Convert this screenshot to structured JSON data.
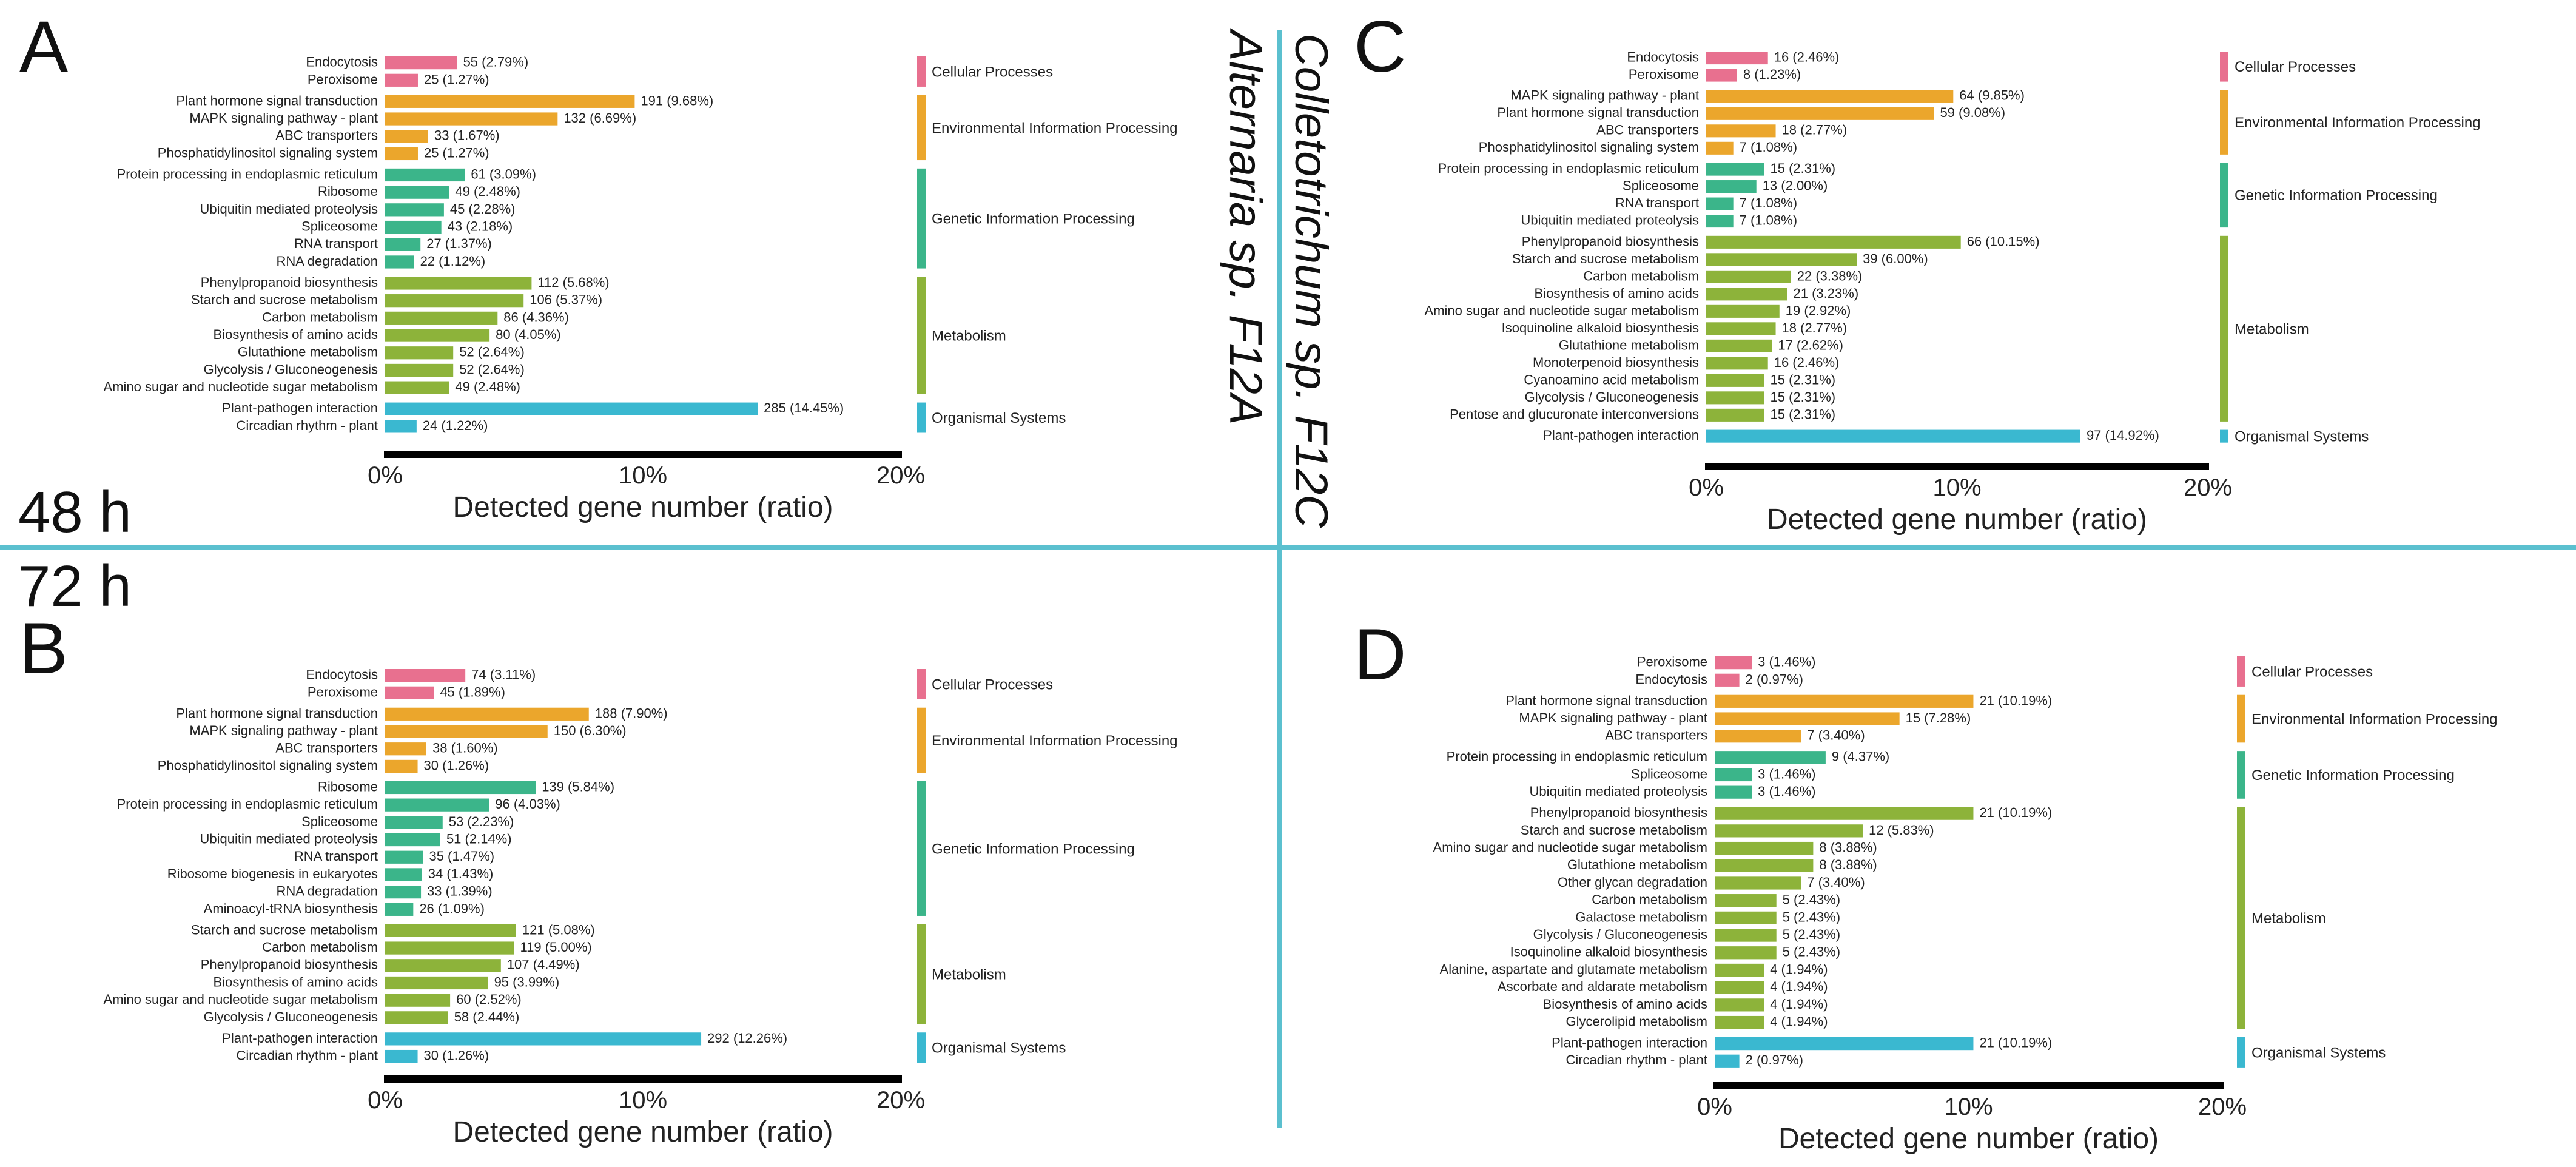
{
  "time_labels": {
    "top": "48 h",
    "bottom": "72 h"
  },
  "organisms": {
    "alternaria": "Alternaria sp. F12A",
    "colletotrichum": "Colletotrichum sp. F12C"
  },
  "colors": {
    "Cellular Processes": "#e8708f",
    "Environmental Information Processing": "#eba62c",
    "Genetic Information Processing": "#3bb58a",
    "Metabolism": "#8db33a",
    "Organismal Systems": "#3ab8d0",
    "divider": "#5bc0cf"
  },
  "chart_data": [
    {
      "panel": "A",
      "type": "bar",
      "orientation": "horizontal",
      "xlabel": "Detected gene number (ratio)",
      "xlim": [
        0,
        20
      ],
      "xticks": [
        "0%",
        "10%",
        "20%"
      ],
      "groups": [
        {
          "name": "Cellular Processes",
          "items": [
            {
              "label": "Endocytosis",
              "value": 2.79,
              "text": "55 (2.79%)"
            },
            {
              "label": "Peroxisome",
              "value": 1.27,
              "text": "25 (1.27%)"
            }
          ]
        },
        {
          "name": "Environmental Information Processing",
          "items": [
            {
              "label": "Plant hormone signal transduction",
              "value": 9.68,
              "text": "191 (9.68%)"
            },
            {
              "label": "MAPK signaling pathway - plant",
              "value": 6.69,
              "text": "132 (6.69%)"
            },
            {
              "label": "ABC transporters",
              "value": 1.67,
              "text": "33 (1.67%)"
            },
            {
              "label": "Phosphatidylinositol signaling system",
              "value": 1.27,
              "text": "25 (1.27%)"
            }
          ]
        },
        {
          "name": "Genetic Information Processing",
          "items": [
            {
              "label": "Protein processing in endoplasmic reticulum",
              "value": 3.09,
              "text": "61 (3.09%)"
            },
            {
              "label": "Ribosome",
              "value": 2.48,
              "text": "49 (2.48%)"
            },
            {
              "label": "Ubiquitin mediated proteolysis",
              "value": 2.28,
              "text": "45 (2.28%)"
            },
            {
              "label": "Spliceosome",
              "value": 2.18,
              "text": "43 (2.18%)"
            },
            {
              "label": "RNA transport",
              "value": 1.37,
              "text": "27 (1.37%)"
            },
            {
              "label": "RNA degradation",
              "value": 1.12,
              "text": "22 (1.12%)"
            }
          ]
        },
        {
          "name": "Metabolism",
          "items": [
            {
              "label": "Phenylpropanoid biosynthesis",
              "value": 5.68,
              "text": "112 (5.68%)"
            },
            {
              "label": "Starch and sucrose metabolism",
              "value": 5.37,
              "text": "106 (5.37%)"
            },
            {
              "label": "Carbon metabolism",
              "value": 4.36,
              "text": "86 (4.36%)"
            },
            {
              "label": "Biosynthesis of amino acids",
              "value": 4.05,
              "text": "80 (4.05%)"
            },
            {
              "label": "Glutathione metabolism",
              "value": 2.64,
              "text": "52 (2.64%)"
            },
            {
              "label": "Glycolysis / Gluconeogenesis",
              "value": 2.64,
              "text": "52 (2.64%)"
            },
            {
              "label": "Amino sugar and nucleotide sugar metabolism",
              "value": 2.48,
              "text": "49 (2.48%)"
            }
          ]
        },
        {
          "name": "Organismal Systems",
          "items": [
            {
              "label": "Plant-pathogen interaction",
              "value": 14.45,
              "text": "285 (14.45%)"
            },
            {
              "label": "Circadian rhythm - plant",
              "value": 1.22,
              "text": "24 (1.22%)"
            }
          ]
        }
      ]
    },
    {
      "panel": "B",
      "type": "bar",
      "orientation": "horizontal",
      "xlabel": "Detected gene number (ratio)",
      "xlim": [
        0,
        20
      ],
      "xticks": [
        "0%",
        "10%",
        "20%"
      ],
      "groups": [
        {
          "name": "Cellular Processes",
          "items": [
            {
              "label": "Endocytosis",
              "value": 3.11,
              "text": "74 (3.11%)"
            },
            {
              "label": "Peroxisome",
              "value": 1.89,
              "text": "45 (1.89%)"
            }
          ]
        },
        {
          "name": "Environmental Information Processing",
          "items": [
            {
              "label": "Plant hormone signal transduction",
              "value": 7.9,
              "text": "188 (7.90%)"
            },
            {
              "label": "MAPK signaling pathway - plant",
              "value": 6.3,
              "text": "150 (6.30%)"
            },
            {
              "label": "ABC transporters",
              "value": 1.6,
              "text": "38 (1.60%)"
            },
            {
              "label": "Phosphatidylinositol signaling system",
              "value": 1.26,
              "text": "30 (1.26%)"
            }
          ]
        },
        {
          "name": "Genetic Information Processing",
          "items": [
            {
              "label": "Ribosome",
              "value": 5.84,
              "text": "139 (5.84%)"
            },
            {
              "label": "Protein processing in endoplasmic reticulum",
              "value": 4.03,
              "text": "96 (4.03%)"
            },
            {
              "label": "Spliceosome",
              "value": 2.23,
              "text": "53 (2.23%)"
            },
            {
              "label": "Ubiquitin mediated proteolysis",
              "value": 2.14,
              "text": "51 (2.14%)"
            },
            {
              "label": "RNA transport",
              "value": 1.47,
              "text": "35 (1.47%)"
            },
            {
              "label": "Ribosome biogenesis in eukaryotes",
              "value": 1.43,
              "text": "34 (1.43%)"
            },
            {
              "label": "RNA degradation",
              "value": 1.39,
              "text": "33 (1.39%)"
            },
            {
              "label": "Aminoacyl-tRNA biosynthesis",
              "value": 1.09,
              "text": "26 (1.09%)"
            }
          ]
        },
        {
          "name": "Metabolism",
          "items": [
            {
              "label": "Starch and sucrose metabolism",
              "value": 5.08,
              "text": "121 (5.08%)"
            },
            {
              "label": "Carbon metabolism",
              "value": 5.0,
              "text": "119 (5.00%)"
            },
            {
              "label": "Phenylpropanoid biosynthesis",
              "value": 4.49,
              "text": "107 (4.49%)"
            },
            {
              "label": "Biosynthesis of amino acids",
              "value": 3.99,
              "text": "95 (3.99%)"
            },
            {
              "label": "Amino sugar and nucleotide sugar metabolism",
              "value": 2.52,
              "text": "60 (2.52%)"
            },
            {
              "label": "Glycolysis / Gluconeogenesis",
              "value": 2.44,
              "text": "58 (2.44%)"
            }
          ]
        },
        {
          "name": "Organismal Systems",
          "items": [
            {
              "label": "Plant-pathogen interaction",
              "value": 12.26,
              "text": "292 (12.26%)"
            },
            {
              "label": "Circadian rhythm - plant",
              "value": 1.26,
              "text": "30 (1.26%)"
            }
          ]
        }
      ]
    },
    {
      "panel": "C",
      "type": "bar",
      "orientation": "horizontal",
      "xlabel": "Detected gene number (ratio)",
      "xlim": [
        0,
        20
      ],
      "xticks": [
        "0%",
        "10%",
        "20%"
      ],
      "groups": [
        {
          "name": "Cellular Processes",
          "items": [
            {
              "label": "Endocytosis",
              "value": 2.46,
              "text": "16 (2.46%)"
            },
            {
              "label": "Peroxisome",
              "value": 1.23,
              "text": "8 (1.23%)"
            }
          ]
        },
        {
          "name": "Environmental Information Processing",
          "items": [
            {
              "label": "MAPK signaling pathway - plant",
              "value": 9.85,
              "text": "64 (9.85%)"
            },
            {
              "label": "Plant hormone signal transduction",
              "value": 9.08,
              "text": "59 (9.08%)"
            },
            {
              "label": "ABC transporters",
              "value": 2.77,
              "text": "18 (2.77%)"
            },
            {
              "label": "Phosphatidylinositol signaling system",
              "value": 1.08,
              "text": "7 (1.08%)"
            }
          ]
        },
        {
          "name": "Genetic Information Processing",
          "items": [
            {
              "label": "Protein processing in endoplasmic reticulum",
              "value": 2.31,
              "text": "15 (2.31%)"
            },
            {
              "label": "Spliceosome",
              "value": 2.0,
              "text": "13 (2.00%)"
            },
            {
              "label": "RNA transport",
              "value": 1.08,
              "text": "7 (1.08%)"
            },
            {
              "label": "Ubiquitin mediated proteolysis",
              "value": 1.08,
              "text": "7 (1.08%)"
            }
          ]
        },
        {
          "name": "Metabolism",
          "items": [
            {
              "label": "Phenylpropanoid biosynthesis",
              "value": 10.15,
              "text": "66 (10.15%)"
            },
            {
              "label": "Starch and sucrose metabolism",
              "value": 6.0,
              "text": "39 (6.00%)"
            },
            {
              "label": "Carbon metabolism",
              "value": 3.38,
              "text": "22 (3.38%)"
            },
            {
              "label": "Biosynthesis of amino acids",
              "value": 3.23,
              "text": "21 (3.23%)"
            },
            {
              "label": "Amino sugar and nucleotide sugar metabolism",
              "value": 2.92,
              "text": "19 (2.92%)"
            },
            {
              "label": "Isoquinoline alkaloid biosynthesis",
              "value": 2.77,
              "text": "18 (2.77%)"
            },
            {
              "label": "Glutathione metabolism",
              "value": 2.62,
              "text": "17 (2.62%)"
            },
            {
              "label": "Monoterpenoid biosynthesis",
              "value": 2.46,
              "text": "16 (2.46%)"
            },
            {
              "label": "Cyanoamino acid metabolism",
              "value": 2.31,
              "text": "15 (2.31%)"
            },
            {
              "label": "Glycolysis / Gluconeogenesis",
              "value": 2.31,
              "text": "15 (2.31%)"
            },
            {
              "label": "Pentose and glucuronate interconversions",
              "value": 2.31,
              "text": "15 (2.31%)"
            }
          ]
        },
        {
          "name": "Organismal Systems",
          "items": [
            {
              "label": "Plant-pathogen interaction",
              "value": 14.92,
              "text": "97 (14.92%)"
            }
          ]
        }
      ]
    },
    {
      "panel": "D",
      "type": "bar",
      "orientation": "horizontal",
      "xlabel": "Detected gene number (ratio)",
      "xlim": [
        0,
        20
      ],
      "xticks": [
        "0%",
        "10%",
        "20%"
      ],
      "groups": [
        {
          "name": "Cellular Processes",
          "items": [
            {
              "label": "Peroxisome",
              "value": 1.46,
              "text": "3 (1.46%)"
            },
            {
              "label": "Endocytosis",
              "value": 0.97,
              "text": "2 (0.97%)"
            }
          ]
        },
        {
          "name": "Environmental Information Processing",
          "items": [
            {
              "label": "Plant hormone signal transduction",
              "value": 10.19,
              "text": "21 (10.19%)"
            },
            {
              "label": "MAPK signaling pathway - plant",
              "value": 7.28,
              "text": "15 (7.28%)"
            },
            {
              "label": "ABC transporters",
              "value": 3.4,
              "text": "7 (3.40%)"
            }
          ]
        },
        {
          "name": "Genetic Information Processing",
          "items": [
            {
              "label": "Protein processing in endoplasmic reticulum",
              "value": 4.37,
              "text": "9 (4.37%)"
            },
            {
              "label": "Spliceosome",
              "value": 1.46,
              "text": "3 (1.46%)"
            },
            {
              "label": "Ubiquitin mediated proteolysis",
              "value": 1.46,
              "text": "3 (1.46%)"
            }
          ]
        },
        {
          "name": "Metabolism",
          "items": [
            {
              "label": "Phenylpropanoid biosynthesis",
              "value": 10.19,
              "text": "21 (10.19%)"
            },
            {
              "label": "Starch and sucrose metabolism",
              "value": 5.83,
              "text": "12 (5.83%)"
            },
            {
              "label": "Amino sugar and nucleotide sugar metabolism",
              "value": 3.88,
              "text": "8 (3.88%)"
            },
            {
              "label": "Glutathione metabolism",
              "value": 3.88,
              "text": "8 (3.88%)"
            },
            {
              "label": "Other glycan degradation",
              "value": 3.4,
              "text": "7 (3.40%)"
            },
            {
              "label": "Carbon metabolism",
              "value": 2.43,
              "text": "5 (2.43%)"
            },
            {
              "label": "Galactose metabolism",
              "value": 2.43,
              "text": "5 (2.43%)"
            },
            {
              "label": "Glycolysis / Gluconeogenesis",
              "value": 2.43,
              "text": "5 (2.43%)"
            },
            {
              "label": "Isoquinoline alkaloid biosynthesis",
              "value": 2.43,
              "text": "5 (2.43%)"
            },
            {
              "label": "Alanine, aspartate and glutamate metabolism",
              "value": 1.94,
              "text": "4 (1.94%)"
            },
            {
              "label": "Ascorbate and aldarate metabolism",
              "value": 1.94,
              "text": "4 (1.94%)"
            },
            {
              "label": "Biosynthesis of amino acids",
              "value": 1.94,
              "text": "4 (1.94%)"
            },
            {
              "label": "Glycerolipid metabolism",
              "value": 1.94,
              "text": "4 (1.94%)"
            }
          ]
        },
        {
          "name": "Organismal Systems",
          "items": [
            {
              "label": "Plant-pathogen interaction",
              "value": 10.19,
              "text": "21 (10.19%)"
            },
            {
              "label": "Circadian rhythm - plant",
              "value": 0.97,
              "text": "2 (0.97%)"
            }
          ]
        }
      ]
    }
  ]
}
